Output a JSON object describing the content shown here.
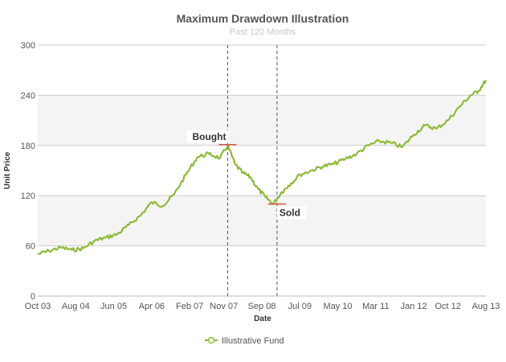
{
  "chart_data": {
    "type": "line",
    "title": "Maximum Drawdown Illustration",
    "subtitle": "Past 120 Months",
    "xlabel": "Date",
    "ylabel": "Unit Price",
    "xlim": [
      "2003-10",
      "2013-08"
    ],
    "ylim": [
      0,
      300
    ],
    "x_ticks": [
      "Oct 03",
      "Aug 04",
      "Jun 05",
      "Apr 06",
      "Feb 07",
      "Nov 07",
      "Sep 08",
      "Jul 09",
      "May 10",
      "Mar 11",
      "Jan 12",
      "Oct 12",
      "Aug 13"
    ],
    "x_tick_dates": [
      "2003-10",
      "2004-08",
      "2005-06",
      "2006-04",
      "2007-02",
      "2007-11",
      "2008-09",
      "2009-07",
      "2010-05",
      "2011-03",
      "2012-01",
      "2012-10",
      "2013-08"
    ],
    "y_ticks": [
      0,
      60,
      120,
      180,
      240,
      300
    ],
    "grid": true,
    "alternating_bands": true,
    "legend_position": "bottom-center",
    "series": [
      {
        "name": "Illustrative Fund",
        "color": "#8dbb3a",
        "x": [
          "2003-10",
          "2004-01",
          "2004-04",
          "2004-07",
          "2004-10",
          "2005-01",
          "2005-04",
          "2005-07",
          "2005-10",
          "2006-01",
          "2006-04",
          "2006-07",
          "2006-10",
          "2007-01",
          "2007-04",
          "2007-07",
          "2007-10",
          "2007-12",
          "2008-02",
          "2008-04",
          "2008-06",
          "2008-08",
          "2008-10",
          "2008-12",
          "2009-02",
          "2009-04",
          "2009-07",
          "2009-10",
          "2010-01",
          "2010-04",
          "2010-07",
          "2010-10",
          "2011-01",
          "2011-04",
          "2011-07",
          "2011-10",
          "2012-01",
          "2012-04",
          "2012-07",
          "2012-10",
          "2013-01",
          "2013-04",
          "2013-06",
          "2013-08"
        ],
        "values": [
          50,
          54,
          58,
          55,
          57,
          66,
          70,
          74,
          85,
          96,
          112,
          108,
          122,
          145,
          166,
          170,
          165,
          180,
          157,
          147,
          142,
          128,
          118,
          110,
          123,
          132,
          145,
          150,
          155,
          158,
          164,
          170,
          180,
          185,
          183,
          178,
          193,
          204,
          200,
          210,
          226,
          240,
          245,
          258
        ]
      }
    ],
    "annotations": [
      {
        "label": "Bought",
        "date": "2007-12",
        "value": 181
      },
      {
        "label": "Sold",
        "date": "2009-01",
        "value": 110
      }
    ],
    "reference_lines": [
      "2007-12",
      "2009-01"
    ]
  }
}
